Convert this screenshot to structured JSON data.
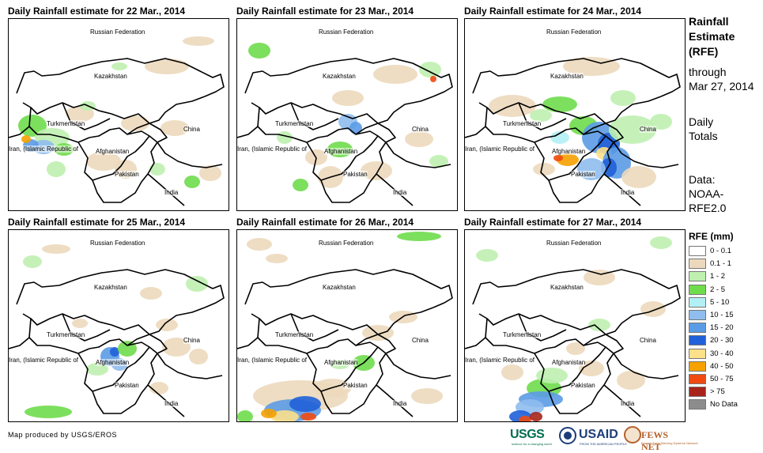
{
  "panels": [
    {
      "title": "Daily Rainfall estimate for 22 Mar., 2014"
    },
    {
      "title": "Daily Rainfall estimate for 23 Mar., 2014"
    },
    {
      "title": "Daily Rainfall estimate for 24 Mar., 2014"
    },
    {
      "title": "Daily Rainfall estimate for 25 Mar., 2014"
    },
    {
      "title": "Daily Rainfall estimate for 26 Mar., 2014"
    },
    {
      "title": "Daily Rainfall estimate for 27 Mar., 2014"
    }
  ],
  "countries": {
    "russia": "Russian Federation",
    "kazakhstan": "Kazakhstan",
    "turkmenistan": "Turkmenistan",
    "china": "China",
    "iran": "Iran, (Islamic Republic of",
    "afghanistan": "Afghanistan",
    "pakistan": "Pakistan",
    "india": "India"
  },
  "sidebar": {
    "title_line1": "Rainfall",
    "title_line2": "Estimate",
    "title_line3": "(RFE)",
    "through": "through",
    "date": "Mar 27, 2014",
    "daily": "Daily",
    "totals": "Totals",
    "data_label": "Data:",
    "source_line1": "NOAA-",
    "source_line2": "RFE2.0"
  },
  "legend": {
    "title": "RFE (mm)",
    "items": [
      {
        "label": "0 - 0.1",
        "color": "#ffffff"
      },
      {
        "label": "0.1 - 1",
        "color": "#ecd9bd"
      },
      {
        "label": "1 - 2",
        "color": "#bff0b0"
      },
      {
        "label": "2 - 5",
        "color": "#6fdc4c"
      },
      {
        "label": "5 - 10",
        "color": "#b3f0f5"
      },
      {
        "label": "10 - 15",
        "color": "#8fbdee"
      },
      {
        "label": "15 - 20",
        "color": "#5b9be6"
      },
      {
        "label": "20 - 30",
        "color": "#2060d8"
      },
      {
        "label": "30 - 40",
        "color": "#fde08a"
      },
      {
        "label": "40 - 50",
        "color": "#f5a100"
      },
      {
        "label": "50 - 75",
        "color": "#f04a10"
      },
      {
        "label": "> 75",
        "color": "#a8241a"
      },
      {
        "label": "No Data",
        "color": "#8c8c8c"
      }
    ]
  },
  "footer": {
    "credit": "Map produced by USGS/EROS",
    "logo_usgs": "USGS",
    "logo_usgs_tag": "science for a changing world",
    "logo_usaid": "USAID",
    "logo_usaid_tag": "FROM THE AMERICAN PEOPLE",
    "logo_fews": "FEWS NET",
    "logo_fews_tag": "Famine Early Warning Systems Network"
  }
}
